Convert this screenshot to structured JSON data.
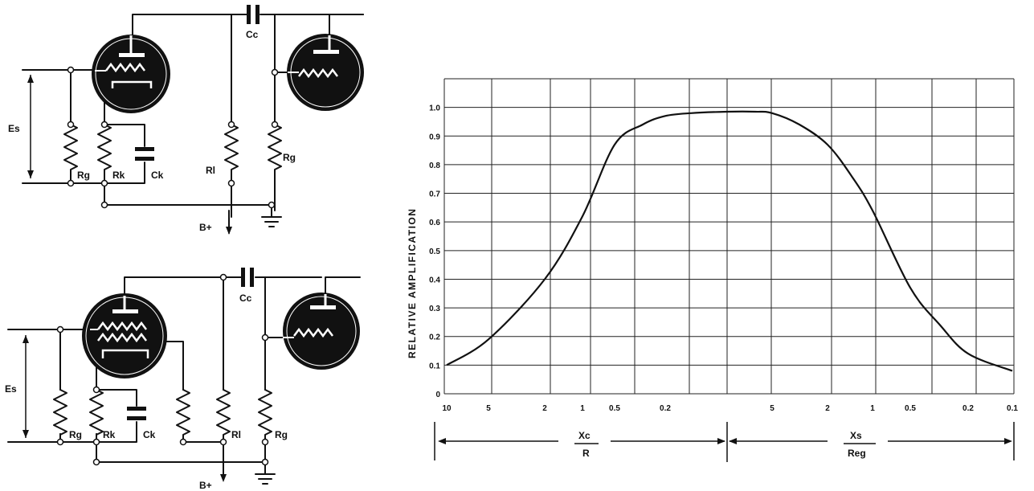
{
  "circuit_top": {
    "labels": {
      "es": "Es",
      "rg_in": "Rg",
      "rk": "Rk",
      "ck": "Ck",
      "rl": "Rl",
      "rg_out": "Rg",
      "cc": "Cc",
      "bplus": "B+"
    }
  },
  "circuit_bottom": {
    "labels": {
      "es": "Es",
      "rg_in": "Rg",
      "rk": "Rk",
      "ck": "Ck",
      "rl": "Rl",
      "rg_out": "Rg",
      "cc": "Cc",
      "bplus": "B+"
    }
  },
  "chart_data": {
    "type": "line",
    "ylabel": "RELATIVE AMPLIFICATION",
    "yticks": [
      "0",
      "0.1",
      "0.2",
      "0.3",
      "0.4",
      "0.5",
      "0.6",
      "0.7",
      "0.8",
      "0.9",
      "1.0"
    ],
    "ylim": [
      0,
      1.1
    ],
    "xticks_left": [
      "10",
      "5",
      "2",
      "1",
      "0.5",
      "0.2"
    ],
    "xticks_right": [
      "5",
      "2",
      "1",
      "0.5",
      "0.2",
      "0.1"
    ],
    "left_range_label": {
      "numerator": "Xc",
      "denominator": "R"
    },
    "right_range_label": {
      "numerator": "Xs",
      "denominator": "Reg"
    },
    "grid": true,
    "series": [
      {
        "points": [
          {
            "x": "10",
            "y": 0.1
          },
          {
            "x": "5",
            "y": 0.19
          },
          {
            "x": "2",
            "y": 0.4
          },
          {
            "x": "1",
            "y": 0.62
          },
          {
            "x": "0.5",
            "y": 0.87
          },
          {
            "x": "0.2",
            "y": 0.97
          },
          {
            "x": "5 (Xs/Reg)",
            "y": 0.98
          },
          {
            "x": "2 (Xs/Reg)",
            "y": 0.87
          },
          {
            "x": "1 (Xs/Reg)",
            "y": 0.64
          },
          {
            "x": "0.5 (Xs/Reg)",
            "y": 0.37
          },
          {
            "x": "0.2 (Xs/Reg)",
            "y": 0.14
          },
          {
            "x": "0.1 (Xs/Reg)",
            "y": 0.08
          }
        ]
      }
    ]
  }
}
